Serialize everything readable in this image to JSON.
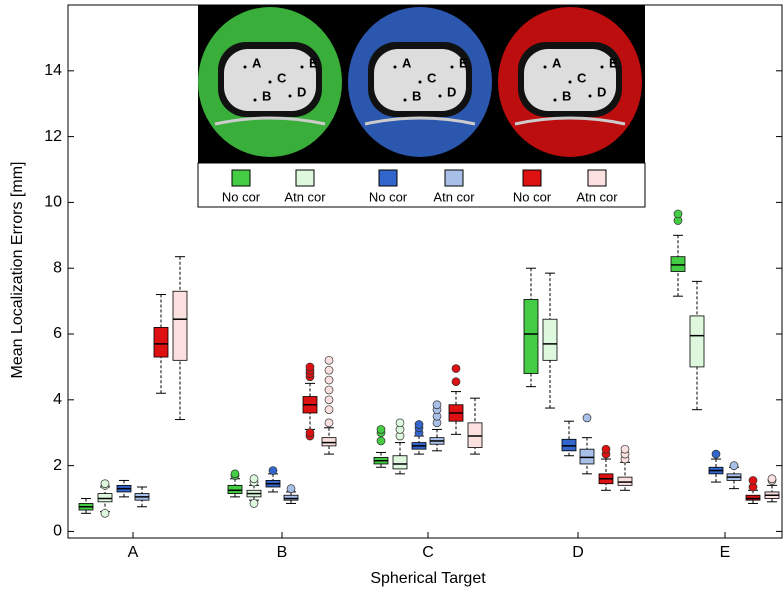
{
  "chart_data": {
    "type": "box",
    "x_label": "Spherical Target",
    "y_label": "Mean Localization Errors [mm]",
    "categories": [
      "A",
      "B",
      "C",
      "D",
      "E"
    ],
    "ylim": [
      -0.2,
      16
    ],
    "yticks": [
      0,
      2,
      4,
      6,
      8,
      10,
      12,
      14
    ],
    "inset_point_labels": [
      "A",
      "B",
      "C",
      "D",
      "E"
    ],
    "series": [
      {
        "name": "No cor",
        "color": "#44cc44",
        "boxes": [
          {
            "low": 0.55,
            "q1": 0.65,
            "median": 0.75,
            "q3": 0.85,
            "high": 1.0,
            "outliers": []
          },
          {
            "low": 1.05,
            "q1": 1.15,
            "median": 1.25,
            "q3": 1.4,
            "high": 1.6,
            "outliers": [
              1.7,
              1.75
            ]
          },
          {
            "low": 1.95,
            "q1": 2.05,
            "median": 2.15,
            "q3": 2.25,
            "high": 2.4,
            "outliers": [
              2.75,
              3.0,
              3.1
            ]
          },
          {
            "low": 4.4,
            "q1": 4.8,
            "median": 6.0,
            "q3": 7.05,
            "high": 8.0,
            "outliers": []
          },
          {
            "low": 7.15,
            "q1": 7.9,
            "median": 8.1,
            "q3": 8.35,
            "high": 9.0,
            "outliers": [
              9.45,
              9.65
            ]
          }
        ]
      },
      {
        "name": "Atn cor",
        "color": "#ddf8dd",
        "boxes": [
          {
            "low": 0.6,
            "q1": 0.9,
            "median": 1.0,
            "q3": 1.15,
            "high": 1.35,
            "outliers": [
              0.55,
              1.4,
              1.45
            ]
          },
          {
            "low": 0.95,
            "q1": 1.05,
            "median": 1.15,
            "q3": 1.25,
            "high": 1.4,
            "outliers": [
              0.85,
              1.5,
              1.6
            ]
          },
          {
            "low": 1.75,
            "q1": 1.9,
            "median": 2.05,
            "q3": 2.3,
            "high": 2.7,
            "outliers": [
              2.9,
              3.1,
              3.3
            ]
          },
          {
            "low": 3.75,
            "q1": 5.2,
            "median": 5.7,
            "q3": 6.45,
            "high": 7.85,
            "outliers": []
          },
          {
            "low": 3.7,
            "q1": 5.0,
            "median": 5.95,
            "q3": 6.55,
            "high": 7.6,
            "outliers": []
          }
        ]
      },
      {
        "name": "No cor",
        "color": "#3366cc",
        "boxes": [
          {
            "low": 1.05,
            "q1": 1.2,
            "median": 1.3,
            "q3": 1.4,
            "high": 1.55,
            "outliers": []
          },
          {
            "low": 1.2,
            "q1": 1.35,
            "median": 1.45,
            "q3": 1.55,
            "high": 1.75,
            "outliers": [
              1.85
            ]
          },
          {
            "low": 2.35,
            "q1": 2.5,
            "median": 2.6,
            "q3": 2.7,
            "high": 2.9,
            "outliers": [
              3.0,
              3.15,
              3.25
            ]
          },
          {
            "low": 2.3,
            "q1": 2.45,
            "median": 2.6,
            "q3": 2.8,
            "high": 3.35,
            "outliers": []
          },
          {
            "low": 1.5,
            "q1": 1.75,
            "median": 1.85,
            "q3": 1.95,
            "high": 2.2,
            "outliers": [
              2.35
            ]
          }
        ]
      },
      {
        "name": "Atn cor",
        "color": "#a8bfe8",
        "boxes": [
          {
            "low": 0.75,
            "q1": 0.95,
            "median": 1.05,
            "q3": 1.15,
            "high": 1.35,
            "outliers": []
          },
          {
            "low": 0.85,
            "q1": 0.95,
            "median": 1.0,
            "q3": 1.1,
            "high": 1.2,
            "outliers": [
              1.3
            ]
          },
          {
            "low": 2.45,
            "q1": 2.65,
            "median": 2.75,
            "q3": 2.85,
            "high": 3.1,
            "outliers": [
              3.3,
              3.5,
              3.7,
              3.85
            ]
          },
          {
            "low": 1.75,
            "q1": 2.05,
            "median": 2.25,
            "q3": 2.5,
            "high": 2.85,
            "outliers": [
              3.45
            ]
          },
          {
            "low": 1.3,
            "q1": 1.55,
            "median": 1.65,
            "q3": 1.75,
            "high": 1.95,
            "outliers": [
              2.0
            ]
          }
        ]
      },
      {
        "name": "No cor",
        "color": "#dd1111",
        "boxes": [
          {
            "low": 4.2,
            "q1": 5.3,
            "median": 5.7,
            "q3": 6.2,
            "high": 7.2,
            "outliers": []
          },
          {
            "low": 3.1,
            "q1": 3.6,
            "median": 3.85,
            "q3": 4.1,
            "high": 4.5,
            "outliers": [
              2.9,
              3.0,
              4.7,
              4.8,
              4.9,
              5.0
            ]
          },
          {
            "low": 2.95,
            "q1": 3.35,
            "median": 3.6,
            "q3": 3.85,
            "high": 4.25,
            "outliers": [
              4.55,
              4.95
            ]
          },
          {
            "low": 1.25,
            "q1": 1.45,
            "median": 1.6,
            "q3": 1.75,
            "high": 2.2,
            "outliers": [
              2.35,
              2.5
            ]
          },
          {
            "low": 0.85,
            "q1": 0.95,
            "median": 1.0,
            "q3": 1.1,
            "high": 1.25,
            "outliers": [
              1.35,
              1.55
            ]
          }
        ]
      },
      {
        "name": "Atn cor",
        "color": "#fbe0e0",
        "boxes": [
          {
            "low": 3.4,
            "q1": 5.2,
            "median": 6.45,
            "q3": 7.3,
            "high": 8.35,
            "outliers": []
          },
          {
            "low": 2.35,
            "q1": 2.6,
            "median": 2.7,
            "q3": 2.85,
            "high": 3.15,
            "outliers": [
              3.3,
              3.7,
              4.0,
              4.3,
              4.6,
              4.9,
              5.2
            ]
          },
          {
            "low": 2.35,
            "q1": 2.55,
            "median": 2.9,
            "q3": 3.3,
            "high": 4.05,
            "outliers": []
          },
          {
            "low": 1.25,
            "q1": 1.4,
            "median": 1.5,
            "q3": 1.65,
            "high": 2.1,
            "outliers": [
              2.2,
              2.35,
              2.5
            ]
          },
          {
            "low": 0.9,
            "q1": 1.0,
            "median": 1.1,
            "q3": 1.2,
            "high": 1.4,
            "outliers": [
              1.55,
              1.6
            ]
          }
        ]
      }
    ]
  }
}
